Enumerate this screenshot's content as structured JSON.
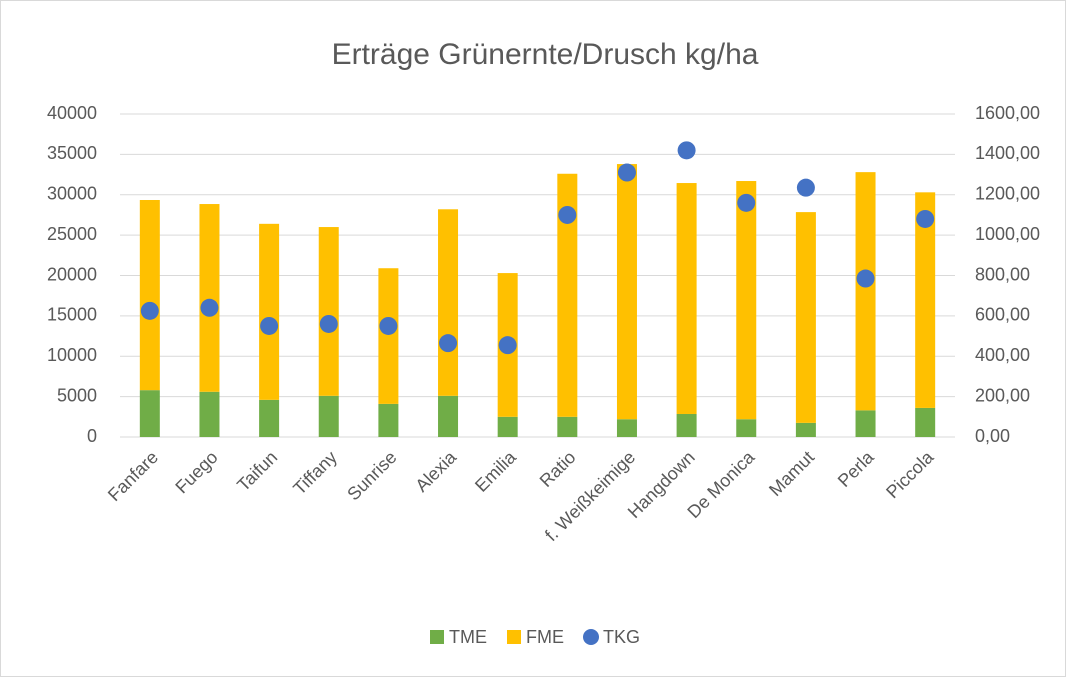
{
  "chart_data": {
    "type": "bar",
    "stacked": true,
    "title": "Erträge Grünernte/Drusch kg/ha",
    "categories": [
      "Fanfare",
      "Fuego",
      "Taifun",
      "Tiffany",
      "Sunrise",
      "Alexia",
      "Emilia",
      "Ratio",
      "f. Weißkeimige",
      "Hangdown",
      "De Monica",
      "Mamut",
      "Perla",
      "Piccola"
    ],
    "series": [
      {
        "name": "TME",
        "type": "bar",
        "color": "#70ad47",
        "values": [
          5800,
          5600,
          4600,
          5100,
          4100,
          5100,
          2500,
          2500,
          2200,
          2850,
          2200,
          1750,
          3300,
          3600
        ]
      },
      {
        "name": "FME",
        "type": "bar",
        "color": "#ffc000",
        "values": [
          23550,
          23250,
          21800,
          20900,
          16800,
          23100,
          17800,
          30100,
          31600,
          28600,
          29500,
          26100,
          29500,
          26700
        ]
      },
      {
        "name": "TKG",
        "type": "scatter",
        "axis": "y2",
        "color": "#4472c4",
        "values": [
          625,
          640,
          550,
          560,
          550,
          465,
          455,
          1100,
          1310,
          1420,
          1160,
          1235,
          785,
          1080
        ]
      }
    ],
    "ylim": [
      0,
      40000
    ],
    "yticks": [
      0,
      5000,
      10000,
      15000,
      20000,
      25000,
      30000,
      35000,
      40000
    ],
    "y2lim": [
      0,
      1600
    ],
    "y2ticks": [
      {
        "value": 0,
        "label": "0,00"
      },
      {
        "value": 200,
        "label": "200,00"
      },
      {
        "value": 400,
        "label": "400,00"
      },
      {
        "value": 600,
        "label": "600,00"
      },
      {
        "value": 800,
        "label": "800,00"
      },
      {
        "value": 1000,
        "label": "1000,00"
      },
      {
        "value": 1200,
        "label": "1200,00"
      },
      {
        "value": 1400,
        "label": "1400,00"
      },
      {
        "value": 1600,
        "label": "1600,00"
      }
    ],
    "legend": "bottom"
  }
}
